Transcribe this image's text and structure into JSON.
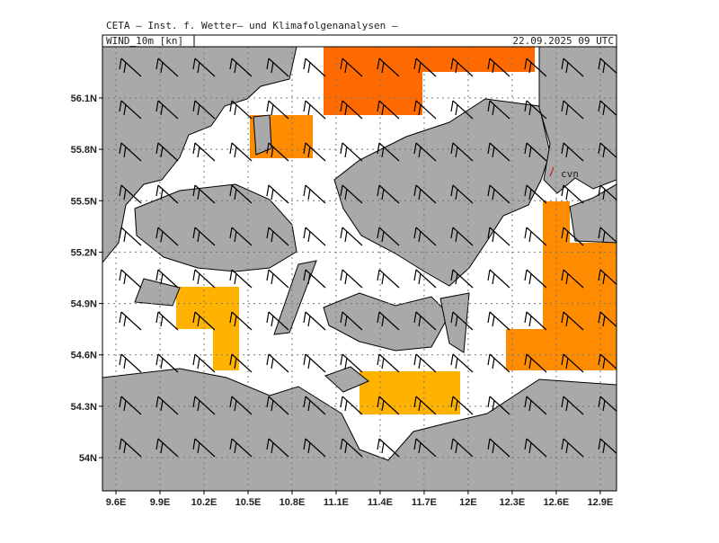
{
  "header": {
    "title": "CETA — Inst. f. Wetter— und Klimafolgenanalysen —",
    "field": "WIND_10m [kn]",
    "valid_time": "22.09.2025 09 UTC"
  },
  "map": {
    "station_label": "cvn",
    "lon_range": [
      9.508,
      13.011
    ],
    "lat_range": [
      53.806,
      56.399
    ],
    "lon_ticks": [
      {
        "value": 9.6,
        "label": "9.6E"
      },
      {
        "value": 9.9,
        "label": "9.9E"
      },
      {
        "value": 10.2,
        "label": "10.2E"
      },
      {
        "value": 10.5,
        "label": "10.5E"
      },
      {
        "value": 10.8,
        "label": "10.8E"
      },
      {
        "value": 11.1,
        "label": "11.1E"
      },
      {
        "value": 11.4,
        "label": "11.4E"
      },
      {
        "value": 11.7,
        "label": "11.7E"
      },
      {
        "value": 12,
        "label": "12E"
      },
      {
        "value": 12.3,
        "label": "12.3E"
      },
      {
        "value": 12.6,
        "label": "12.6E"
      },
      {
        "value": 12.9,
        "label": "12.9E"
      }
    ],
    "lat_ticks": [
      {
        "value": 56.1,
        "label": "56.1N"
      },
      {
        "value": 55.8,
        "label": "55.8N"
      },
      {
        "value": 55.5,
        "label": "55.5N"
      },
      {
        "value": 55.2,
        "label": "55.2N"
      },
      {
        "value": 54.9,
        "label": "54.9N"
      },
      {
        "value": 54.6,
        "label": "54.6N"
      },
      {
        "value": 54.3,
        "label": "54.3N"
      },
      {
        "value": 54,
        "label": "54N"
      }
    ]
  }
}
